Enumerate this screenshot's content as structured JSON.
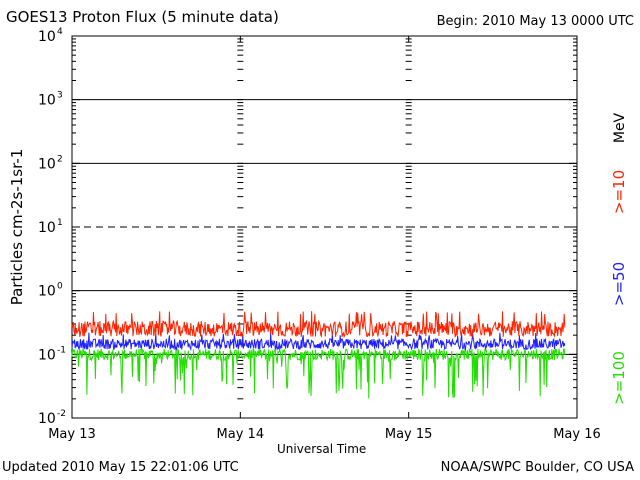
{
  "title": "GOES13 Proton Flux (5 minute data)",
  "begin": "Begin: 2010 May 13 0000 UTC",
  "updated": "Updated 2010 May 15 22:01:06 UTC",
  "credit": "NOAA/SWPC Boulder, CO USA",
  "chart_data": {
    "type": "line",
    "title": "GOES13 Proton Flux (5 minute data)",
    "xlabel": "Universal Time",
    "ylabel": "Particles cm-2s-1sr-1",
    "yscale": "log",
    "ylim": [
      0.01,
      10000
    ],
    "xlim": [
      "May 13",
      "May 16"
    ],
    "x_ticks": [
      "May 13",
      "May 14",
      "May 15",
      "May 16"
    ],
    "y_ticks": [
      {
        "base": "10",
        "exp": "-2",
        "value": 0.01
      },
      {
        "base": "10",
        "exp": "-1",
        "value": 0.1
      },
      {
        "base": "10",
        "exp": "0",
        "value": 1
      },
      {
        "base": "10",
        "exp": "1",
        "value": 10
      },
      {
        "base": "10",
        "exp": "2",
        "value": 100
      },
      {
        "base": "10",
        "exp": "3",
        "value": 1000
      },
      {
        "base": "10",
        "exp": "4",
        "value": 10000
      }
    ],
    "reference_lines": [
      {
        "value": 0.1,
        "style": "solid"
      },
      {
        "value": 1,
        "style": "solid"
      },
      {
        "value": 10,
        "style": "dashed"
      },
      {
        "value": 100,
        "style": "solid"
      },
      {
        "value": 1000,
        "style": "solid"
      }
    ],
    "legend_unit": "MeV",
    "series": [
      {
        "name": ">=10",
        "color": "#ff2200",
        "typical": 0.25,
        "low": 0.17,
        "high": 0.48
      },
      {
        "name": ">=50",
        "color": "#2020ff",
        "typical": 0.145,
        "low": 0.11,
        "high": 0.22
      },
      {
        "name": ">=100",
        "color": "#22dd00",
        "typical": 0.1,
        "low": 0.02,
        "high": 0.14
      }
    ],
    "x_end_fraction": 0.976
  }
}
